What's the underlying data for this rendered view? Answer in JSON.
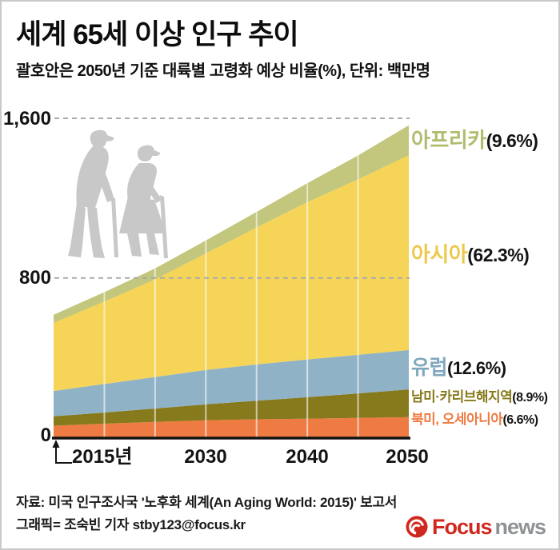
{
  "title": "세계 65세 이상 인구 추이",
  "subtitle": "괄호안은 2050년 기준 대륙별 고령화 예상 비율(%), 단위: 백만명",
  "footer": {
    "source": "자료: 미국 인구조사국 '노후화 세계(An Aging World: 2015)' 보고서",
    "credit": "그래픽= 조숙빈 기자 stby123@focus.kr",
    "logo": {
      "brand": "Focus",
      "suffix": "news",
      "brand_color": "#d0281e",
      "suffix_color": "#8f9295"
    }
  },
  "chart_data": {
    "type": "area",
    "stacked": true,
    "title": "세계 65세 이상 인구 추이",
    "unit": "백만명",
    "xlabel": "",
    "ylabel": "",
    "x": [
      2015,
      2020,
      2025,
      2030,
      2035,
      2040,
      2045,
      2050
    ],
    "ylim": [
      0,
      1600
    ],
    "grid": {
      "horizontal_dashed": [
        800,
        1600
      ],
      "vertical_white_lines_at_interior_years": true
    },
    "legend_position": "right",
    "y_ticks": [
      {
        "value": 0,
        "label": "0"
      },
      {
        "value": 800,
        "label": "800"
      },
      {
        "value": 1600,
        "label": "1,600"
      }
    ],
    "x_tick_labels": [
      {
        "x": 2015,
        "label": "2015년"
      },
      {
        "x": 2030,
        "label": "2030"
      },
      {
        "x": 2040,
        "label": "2040"
      },
      {
        "x": 2050,
        "label": "2050"
      }
    ],
    "series": [
      {
        "id": "north-america-oceania",
        "name": "북미, 오세아니아",
        "share_2050": "(6.6%)",
        "color": "#EE7B42",
        "label_color": "#EE7B42",
        "values": [
          60,
          70,
          79,
          87,
          92,
          95,
          99,
          103
        ]
      },
      {
        "id": "latin-america-caribbean",
        "name": "남미·카리브해지역",
        "share_2050": "(8.9%)",
        "color": "#877A1C",
        "label_color": "#877A1C",
        "values": [
          47,
          56,
          67,
          80,
          93,
          108,
          123,
          139
        ]
      },
      {
        "id": "europe",
        "name": "유럽",
        "share_2050": "(12.6%)",
        "color": "#8FB2C6",
        "label_color": "#7FA7BE",
        "values": [
          127,
          143,
          158,
          172,
          182,
          189,
          193,
          197
        ]
      },
      {
        "id": "asia",
        "name": "아시아",
        "share_2050": "(62.3%)",
        "color": "#F5D457",
        "label_color": "#ECC94B",
        "values": [
          341,
          413,
          489,
          584,
          686,
          788,
          879,
          976
        ]
      },
      {
        "id": "africa",
        "name": "아프리카",
        "share_2050": "(9.6%)",
        "color": "#C3C67D",
        "label_color": "#B2BC6E",
        "values": [
          41,
          47,
          55,
          65,
          78,
          95,
          120,
          150
        ]
      }
    ]
  }
}
